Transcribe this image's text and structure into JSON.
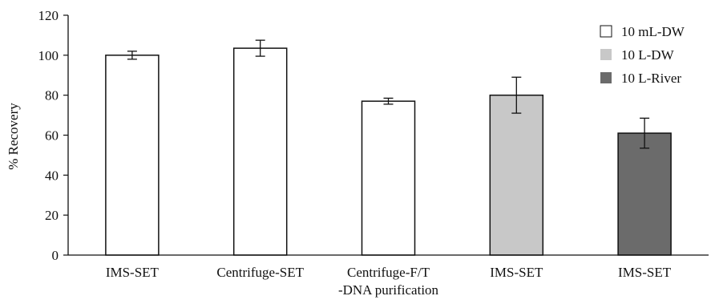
{
  "chart_data": {
    "type": "bar",
    "title": "",
    "xlabel": "",
    "ylabel": "% Recovery",
    "ylim": [
      0,
      120
    ],
    "yticks": [
      0,
      20,
      40,
      60,
      80,
      100,
      120
    ],
    "grid": false,
    "legend_position": "top-right",
    "categories": [
      [
        "IMS-SET"
      ],
      [
        "Centrifuge-SET"
      ],
      [
        "Centrifuge-F/T",
        "-DNA purification"
      ],
      [
        "IMS-SET"
      ],
      [
        "IMS-SET"
      ]
    ],
    "values": [
      100,
      103.5,
      77,
      80,
      61
    ],
    "errors": [
      2,
      4,
      1.5,
      9,
      7.5
    ],
    "series_index": [
      0,
      0,
      0,
      1,
      2
    ],
    "series": [
      {
        "name": "10 mL-DW",
        "color": "#ffffff"
      },
      {
        "name": "10 L-DW",
        "color": "#c8c8c8"
      },
      {
        "name": "10 L-River",
        "color": "#6b6b6b"
      }
    ]
  }
}
